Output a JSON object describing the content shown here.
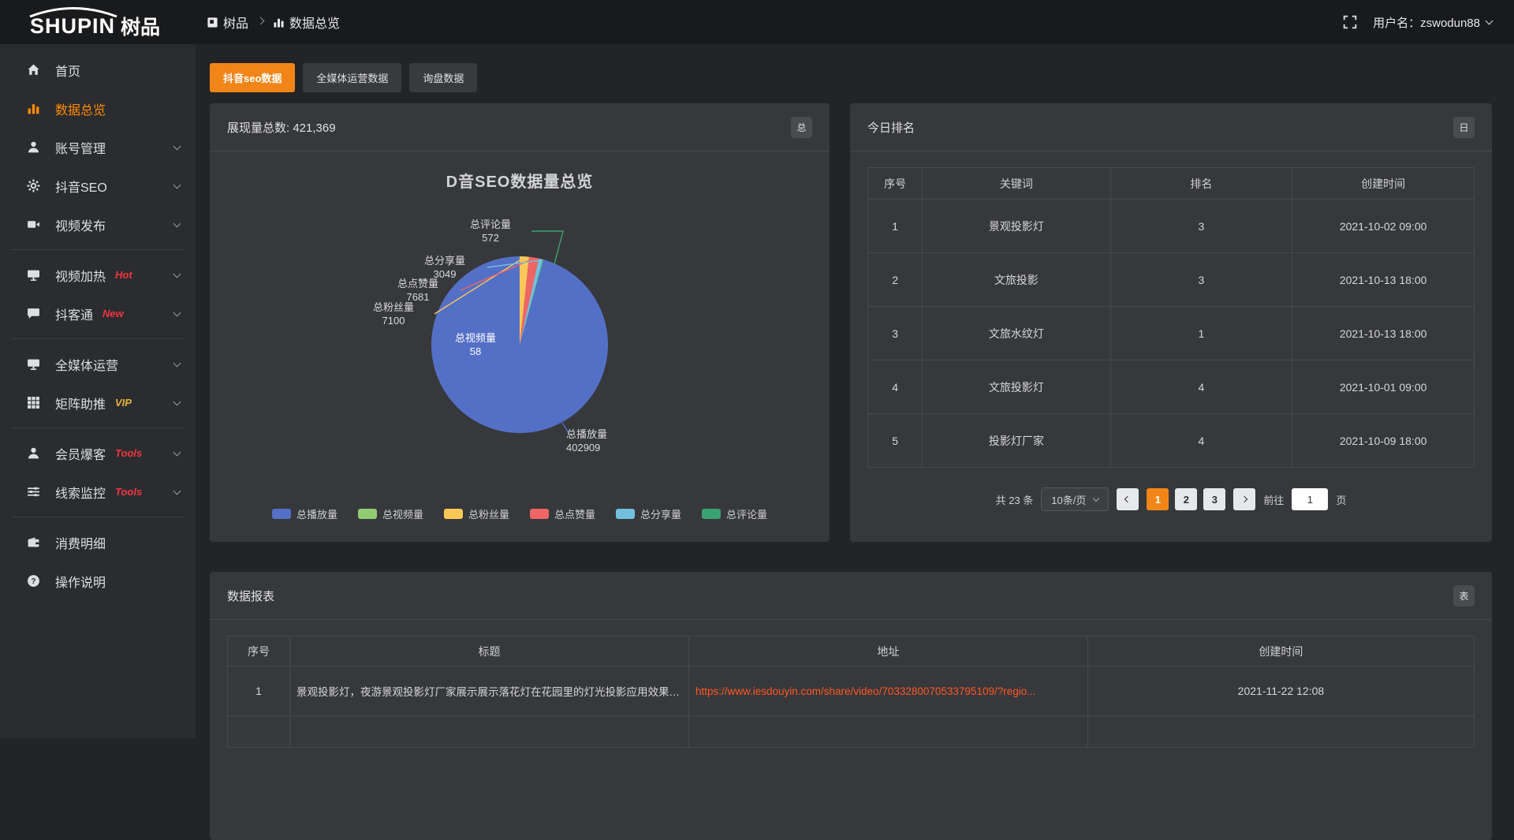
{
  "topbar": {
    "logo_en": "SHUPIN",
    "logo_cn": "树品",
    "breadcrumb_root": "树品",
    "breadcrumb_current": "数据总览",
    "username": "用户名：zswodun88"
  },
  "sidebar": {
    "groups": [
      {
        "items": [
          {
            "key": "home",
            "label": "首页",
            "icon": "home-icon",
            "active": false,
            "arrow": false,
            "badge": "",
            "badge_color": ""
          },
          {
            "key": "data-overview",
            "label": "数据总览",
            "icon": "bar-chart-icon",
            "active": true,
            "arrow": false,
            "badge": "",
            "badge_color": ""
          },
          {
            "key": "account-management",
            "label": "账号管理",
            "icon": "user-icon",
            "active": false,
            "arrow": true,
            "badge": "",
            "badge_color": ""
          },
          {
            "key": "douyin-seo",
            "label": "抖音SEO",
            "icon": "gear-icon",
            "active": false,
            "arrow": true,
            "badge": "",
            "badge_color": ""
          },
          {
            "key": "video-publish",
            "label": "视频发布",
            "icon": "video-camera-icon",
            "active": false,
            "arrow": true,
            "badge": "",
            "badge_color": ""
          }
        ]
      },
      {
        "items": [
          {
            "key": "video-heat",
            "label": "视频加热",
            "icon": "monitor-icon",
            "active": false,
            "arrow": true,
            "badge": "Hot",
            "badge_color": "#f2353f"
          },
          {
            "key": "douketong",
            "label": "抖客通",
            "icon": "chat-icon",
            "active": false,
            "arrow": true,
            "badge": "New",
            "badge_color": "#f2353f"
          }
        ]
      },
      {
        "items": [
          {
            "key": "media-operation",
            "label": "全媒体运营",
            "icon": "monitor-icon",
            "active": false,
            "arrow": true,
            "badge": "",
            "badge_color": ""
          },
          {
            "key": "matrix-boost",
            "label": "矩阵助推",
            "icon": "grid-icon",
            "active": false,
            "arrow": true,
            "badge": "VIP",
            "badge_color": "#e8b339"
          }
        ]
      },
      {
        "items": [
          {
            "key": "member-baoke",
            "label": "会员爆客",
            "icon": "user-icon",
            "active": false,
            "arrow": true,
            "badge": "Tools",
            "badge_color": "#f2353f"
          },
          {
            "key": "lead-monitor",
            "label": "线索监控",
            "icon": "sliders-icon",
            "active": false,
            "arrow": true,
            "badge": "Tools",
            "badge_color": "#f2353f"
          }
        ]
      },
      {
        "items": [
          {
            "key": "consume-detail",
            "label": "消费明细",
            "icon": "wallet-icon",
            "active": false,
            "arrow": false,
            "badge": "",
            "badge_color": ""
          },
          {
            "key": "operation-guide",
            "label": "操作说明",
            "icon": "question-icon",
            "active": false,
            "arrow": false,
            "badge": "",
            "badge_color": ""
          }
        ]
      }
    ]
  },
  "tabs": {
    "items": [
      {
        "key": "douyin-seo-data",
        "label": "抖音seo数据",
        "active": true
      },
      {
        "key": "media-operation-data",
        "label": "全媒体运营数据",
        "active": false
      },
      {
        "key": "inquiry-data",
        "label": "询盘数据",
        "active": false
      }
    ]
  },
  "overview_panel": {
    "title": "展现量总数: 421,369",
    "badge": "总"
  },
  "chart_data": {
    "type": "pie",
    "title": "D音SEO数据量总览",
    "total": 421369,
    "series": [
      {
        "name": "总播放量",
        "value": 402909,
        "color": "#5470c6"
      },
      {
        "name": "总视频量",
        "value": 58,
        "color": "#91cc75"
      },
      {
        "name": "总粉丝量",
        "value": 7100,
        "color": "#fac858"
      },
      {
        "name": "总点赞量",
        "value": 7681,
        "color": "#ee6666"
      },
      {
        "name": "总分享量",
        "value": 3049,
        "color": "#73c0de"
      },
      {
        "name": "总评论量",
        "value": 572,
        "color": "#3ba272"
      }
    ],
    "draw_order": [
      2,
      3,
      4,
      5,
      1,
      0
    ],
    "legend_position": "bottom"
  },
  "ranking_panel": {
    "title": "今日排名",
    "badge": "日",
    "columns": [
      "序号",
      "关键词",
      "排名",
      "创建时间"
    ],
    "rows": [
      [
        "1",
        "景观投影灯",
        "3",
        "2021-10-02 09:00"
      ],
      [
        "2",
        "文旅投影",
        "3",
        "2021-10-13 18:00"
      ],
      [
        "3",
        "文旅水纹灯",
        "1",
        "2021-10-13 18:00"
      ],
      [
        "4",
        "文旅投影灯",
        "4",
        "2021-10-01 09:00"
      ],
      [
        "5",
        "投影灯厂家",
        "4",
        "2021-10-09 18:00"
      ]
    ],
    "pagination": {
      "total": "共 23 条",
      "page_size": "10条/页",
      "pages": [
        "1",
        "2",
        "3"
      ],
      "active_page": "1",
      "goto_label": "前往",
      "goto_value": "1",
      "page_suffix": "页"
    }
  },
  "report_panel": {
    "title": "数据报表",
    "badge": "表",
    "columns": [
      "序号",
      "标题",
      "地址",
      "创建时间"
    ],
    "rows": [
      {
        "no": "1",
        "title": "景观投影灯，夜游景观投影灯厂家展示展示落花灯在花园里的灯光投影应用效果 #...",
        "url": "https://www.iesdouyin.com/share/video/7033280070533795109/?regio...",
        "time": "2021-11-22 12:08"
      }
    ]
  }
}
